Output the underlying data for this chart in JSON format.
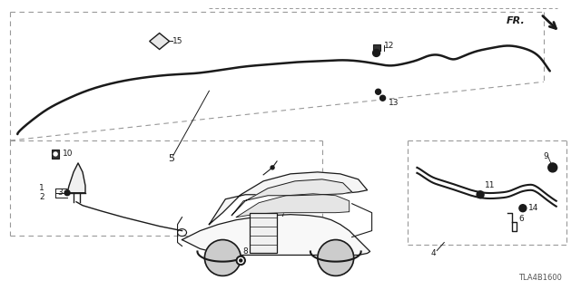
{
  "bg_color": "#ffffff",
  "line_color": "#1a1a1a",
  "dash_color": "#999999",
  "label_color": "#1a1a1a",
  "fig_width": 6.4,
  "fig_height": 3.2,
  "dpi": 100,
  "diagram_code": "TLA4B1600"
}
